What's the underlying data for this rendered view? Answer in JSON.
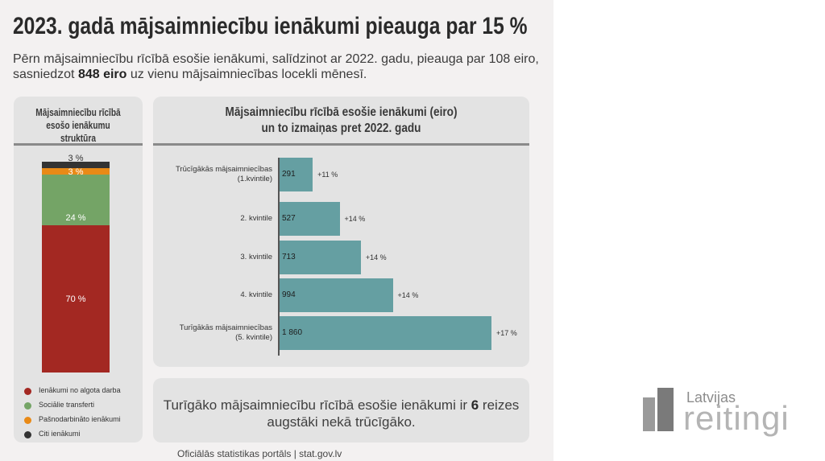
{
  "title": "2023. gadā mājsaimniecību ienākumi pieauga par 15 %",
  "subtitle_before": "Pērn mājsaimniecību rīcībā esošie ienākumi, salīdzinot ar 2022. gadu, pieauga par 108 eiro, sasniedzot ",
  "subtitle_bold": "848 eiro",
  "subtitle_after": " uz vienu mājsaimniecības locekli mēnesī.",
  "left_title": "Mājsaimniecību rīcībā esošo ienākumu struktūra",
  "right_title_line1": "Mājsaimniecību rīcībā esošie ienākumi (eiro)",
  "right_title_line2": "un to izmaiņas pret 2022. gadu",
  "bottom_before": "Turīgāko mājsaimniecību rīcībā esošie ienākumi ir ",
  "bottom_bold": "6",
  "bottom_after": " reizes augstāki nekā trūcīgāko.",
  "source": "Oficiālās statistikas portāls | stat.gov.lv",
  "logo_top": "Latvijas",
  "logo_bottom": "reitingi",
  "chart_data": [
    {
      "type": "bar",
      "stacked": true,
      "title": "Mājsaimniecību rīcībā esošo ienākumu struktūra",
      "series": [
        {
          "name": "Ienākumi no algota darba",
          "value": 70,
          "label": "70 %",
          "color": "#a32822"
        },
        {
          "name": "Sociālie transferti",
          "value": 24,
          "label": "24 %",
          "color": "#74a466"
        },
        {
          "name": "Pašnodarbināto ienākumi",
          "value": 3,
          "label": "3 %",
          "color": "#e98a17"
        },
        {
          "name": "Citi ienākumi",
          "value": 3,
          "label": "3 %",
          "color": "#333333"
        }
      ],
      "legend": "bottom"
    },
    {
      "type": "bar",
      "orientation": "horizontal",
      "title": "Mājsaimniecību rīcībā esošie ienākumi (eiro) un to izmaiņas pret 2022. gadu",
      "categories": [
        [
          "Trūcīgākās mājsaimniecības",
          "(1.kvintile)"
        ],
        [
          "2. kvintile"
        ],
        [
          "3. kvintile"
        ],
        [
          "4. kvintile"
        ],
        [
          "Turīgākās mājsaimniecības",
          "(5. kvintile)"
        ]
      ],
      "values": [
        291,
        527,
        713,
        994,
        1860
      ],
      "value_labels": [
        "291",
        "527",
        "713",
        "994",
        "1 860"
      ],
      "changes": [
        "+11 %",
        "+14 %",
        "+14 %",
        "+14 %",
        "+17 %"
      ],
      "bar_color": "#659fa2",
      "xlim": [
        0,
        1860
      ]
    }
  ]
}
